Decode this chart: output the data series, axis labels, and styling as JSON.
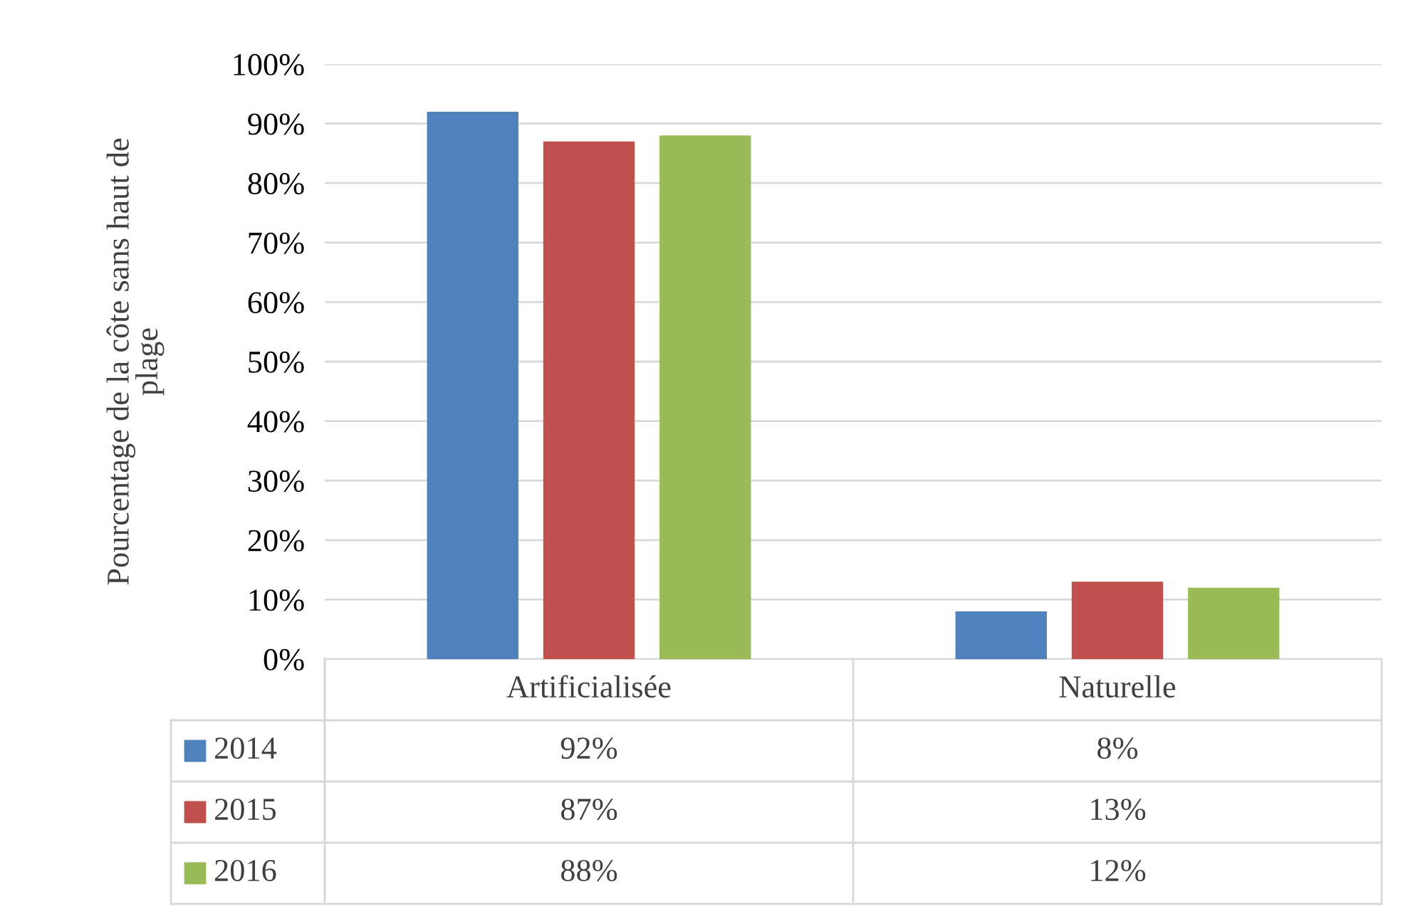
{
  "chart_data": {
    "type": "bar",
    "ylabel": "Pourcentage de la côte sans haut de plage",
    "categories": [
      "Artificialisée",
      "Naturelle"
    ],
    "series": [
      {
        "name": "2014",
        "color": "#4f81bd",
        "values": [
          92,
          8
        ],
        "value_labels": [
          "92%",
          "8%"
        ]
      },
      {
        "name": "2015",
        "color": "#c0504d",
        "values": [
          87,
          13
        ],
        "value_labels": [
          "87%",
          "13%"
        ]
      },
      {
        "name": "2016",
        "color": "#9bbb59",
        "values": [
          88,
          12
        ],
        "value_labels": [
          "88%",
          "12%"
        ]
      }
    ],
    "ylim": [
      0,
      100
    ],
    "yticks": [
      {
        "value": 0,
        "label": "0%"
      },
      {
        "value": 10,
        "label": "10%"
      },
      {
        "value": 20,
        "label": "20%"
      },
      {
        "value": 30,
        "label": "30%"
      },
      {
        "value": 40,
        "label": "40%"
      },
      {
        "value": 50,
        "label": "50%"
      },
      {
        "value": 60,
        "label": "60%"
      },
      {
        "value": 70,
        "label": "70%"
      },
      {
        "value": 80,
        "label": "80%"
      },
      {
        "value": 90,
        "label": "90%"
      },
      {
        "value": 100,
        "label": "100%"
      }
    ],
    "grid": "y",
    "legend": "bottom left"
  }
}
